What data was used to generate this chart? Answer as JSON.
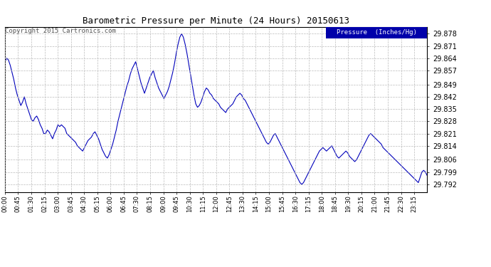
{
  "title": "Barometric Pressure per Minute (24 Hours) 20150613",
  "copyright": "Copyright 2015 Cartronics.com",
  "legend_label": "Pressure  (Inches/Hg)",
  "line_color": "#0000bb",
  "background_color": "#ffffff",
  "plot_bg_color": "#ffffff",
  "grid_color": "#bbbbbb",
  "legend_bg": "#0000aa",
  "legend_text_color": "#ffffff",
  "yticks": [
    29.792,
    29.799,
    29.806,
    29.814,
    29.821,
    29.828,
    29.835,
    29.842,
    29.849,
    29.857,
    29.864,
    29.871,
    29.878
  ],
  "ylim": [
    29.7875,
    29.882
  ],
  "xtick_labels": [
    "00:00",
    "00:45",
    "01:30",
    "02:15",
    "03:00",
    "03:45",
    "04:30",
    "05:15",
    "06:00",
    "06:45",
    "07:30",
    "08:15",
    "09:00",
    "09:45",
    "10:30",
    "11:15",
    "12:00",
    "12:45",
    "13:30",
    "14:15",
    "15:00",
    "15:45",
    "16:30",
    "17:15",
    "18:00",
    "18:45",
    "19:30",
    "20:15",
    "21:00",
    "21:45",
    "22:30",
    "23:15"
  ],
  "pressure_data": [
    29.862,
    29.864,
    29.863,
    29.86,
    29.856,
    29.852,
    29.847,
    29.843,
    29.84,
    29.837,
    29.839,
    29.842,
    29.838,
    29.835,
    29.832,
    29.829,
    29.828,
    29.83,
    29.831,
    29.829,
    29.826,
    29.824,
    29.821,
    29.821,
    29.823,
    29.822,
    29.82,
    29.818,
    29.821,
    29.823,
    29.826,
    29.825,
    29.826,
    29.825,
    29.824,
    29.821,
    29.82,
    29.819,
    29.818,
    29.817,
    29.816,
    29.814,
    29.813,
    29.812,
    29.811,
    29.813,
    29.815,
    29.817,
    29.818,
    29.819,
    29.821,
    29.822,
    29.82,
    29.818,
    29.815,
    29.812,
    29.81,
    29.808,
    29.807,
    29.809,
    29.812,
    29.815,
    29.819,
    29.823,
    29.828,
    29.832,
    29.836,
    29.84,
    29.844,
    29.848,
    29.851,
    29.855,
    29.858,
    29.86,
    29.862,
    29.858,
    29.854,
    29.85,
    29.847,
    29.844,
    29.847,
    29.85,
    29.853,
    29.855,
    29.857,
    29.853,
    29.85,
    29.847,
    29.845,
    29.843,
    29.841,
    29.843,
    29.845,
    29.848,
    29.852,
    29.856,
    29.861,
    29.867,
    29.872,
    29.876,
    29.878,
    29.876,
    29.872,
    29.867,
    29.861,
    29.855,
    29.849,
    29.843,
    29.838,
    29.836,
    29.837,
    29.839,
    29.842,
    29.845,
    29.847,
    29.846,
    29.844,
    29.843,
    29.841,
    29.84,
    29.839,
    29.838,
    29.836,
    29.835,
    29.834,
    29.833,
    29.835,
    29.836,
    29.837,
    29.838,
    29.84,
    29.842,
    29.843,
    29.844,
    29.843,
    29.841,
    29.84,
    29.838,
    29.836,
    29.834,
    29.832,
    29.83,
    29.828,
    29.826,
    29.824,
    29.822,
    29.82,
    29.818,
    29.816,
    29.815,
    29.816,
    29.818,
    29.82,
    29.821,
    29.819,
    29.817,
    29.815,
    29.813,
    29.811,
    29.809,
    29.807,
    29.805,
    29.803,
    29.801,
    29.799,
    29.797,
    29.795,
    29.793,
    29.792,
    29.793,
    29.795,
    29.797,
    29.799,
    29.801,
    29.803,
    29.805,
    29.807,
    29.809,
    29.811,
    29.812,
    29.813,
    29.812,
    29.811,
    29.812,
    29.813,
    29.814,
    29.812,
    29.81,
    29.808,
    29.807,
    29.808,
    29.809,
    29.81,
    29.811,
    29.81,
    29.808,
    29.807,
    29.806,
    29.805,
    29.806,
    29.808,
    29.81,
    29.812,
    29.814,
    29.816,
    29.818,
    29.82,
    29.821,
    29.82,
    29.819,
    29.818,
    29.817,
    29.816,
    29.815,
    29.813,
    29.812,
    29.811,
    29.81,
    29.809,
    29.808,
    29.807,
    29.806,
    29.805,
    29.804,
    29.803,
    29.802,
    29.801,
    29.8,
    29.799,
    29.798,
    29.797,
    29.796,
    29.795,
    29.794,
    29.793,
    29.796,
    29.799,
    29.8,
    29.799,
    29.797
  ]
}
